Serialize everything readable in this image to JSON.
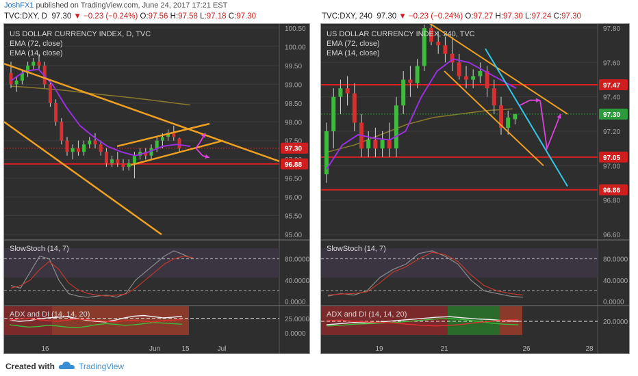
{
  "publish": {
    "author": "JoshFX1",
    "text": "published on TradingView.com, June 24, 2017 17:21 EST"
  },
  "left": {
    "header": {
      "symbol": "TVC:DXY, D",
      "price": "97.30",
      "change": "−0.23 (−0.24%)",
      "o_label": "O:",
      "o": "97.56",
      "h_label": "H:",
      "h": "97.58",
      "l_label": "L:",
      "l": "97.18",
      "c_label": "C:",
      "c": "97.30"
    },
    "legend": [
      "US DOLLAR CURRENCY INDEX, D, TVC",
      "EMA (72, close)",
      "EMA (14, close)"
    ],
    "price_ticks": [
      "100.50",
      "100.00",
      "99.50",
      "99.00",
      "98.50",
      "98.00",
      "97.50",
      "97.00",
      "96.50",
      "96.00",
      "95.50",
      "95.00"
    ],
    "price_min": 95.0,
    "price_max": 100.5,
    "tags": [
      {
        "value": "97.30",
        "color": "#d01e1e"
      },
      {
        "value": "96.88",
        "color": "#d01e1e"
      }
    ],
    "x_ticks": [
      "16",
      "Jun",
      "15",
      "Jul"
    ],
    "stoch": {
      "title": "SlowStoch (14, 7)",
      "ticks": [
        "80.0000",
        "40.0000",
        "0.0000"
      ]
    },
    "adx": {
      "title": "ADX and DI (14, 14, 20)",
      "ticks": [
        "25.0000",
        "0.0000"
      ]
    },
    "chart_data": {
      "type": "candlestick",
      "title": "US DOLLAR CURRENCY INDEX, D, TVC",
      "candles": [
        [
          99.3,
          99.6,
          98.9,
          99.0
        ],
        [
          99.0,
          99.2,
          98.8,
          99.1
        ],
        [
          99.1,
          99.4,
          99.0,
          99.3
        ],
        [
          99.3,
          99.6,
          99.2,
          99.5
        ],
        [
          99.5,
          99.7,
          99.4,
          99.6
        ],
        [
          99.6,
          99.8,
          99.4,
          99.5
        ],
        [
          99.5,
          99.6,
          98.9,
          99.0
        ],
        [
          99.0,
          99.1,
          98.4,
          98.5
        ],
        [
          98.5,
          98.6,
          97.9,
          98.0
        ],
        [
          98.0,
          98.1,
          97.4,
          97.5
        ],
        [
          97.5,
          97.6,
          97.1,
          97.2
        ],
        [
          97.2,
          97.4,
          97.0,
          97.3
        ],
        [
          97.3,
          97.5,
          97.1,
          97.2
        ],
        [
          97.2,
          97.5,
          97.1,
          97.4
        ],
        [
          97.4,
          97.6,
          97.3,
          97.5
        ],
        [
          97.5,
          97.7,
          97.3,
          97.4
        ],
        [
          97.4,
          97.5,
          97.1,
          97.2
        ],
        [
          97.2,
          97.3,
          96.8,
          96.9
        ],
        [
          96.9,
          97.1,
          96.8,
          97.0
        ],
        [
          97.0,
          97.2,
          96.8,
          96.9
        ],
        [
          96.9,
          97.0,
          96.7,
          96.8
        ],
        [
          96.8,
          97.0,
          96.7,
          96.9
        ],
        [
          96.9,
          97.2,
          96.5,
          97.1
        ],
        [
          97.1,
          97.3,
          97.0,
          97.2
        ],
        [
          97.2,
          97.3,
          97.0,
          97.1
        ],
        [
          97.1,
          97.4,
          97.0,
          97.3
        ],
        [
          97.3,
          97.6,
          97.2,
          97.5
        ],
        [
          97.5,
          97.7,
          97.3,
          97.6
        ],
        [
          97.6,
          97.8,
          97.5,
          97.7
        ],
        [
          97.7,
          97.9,
          97.5,
          97.6
        ],
        [
          97.56,
          97.58,
          97.18,
          97.3
        ]
      ],
      "ema72": [
        98.95,
        98.92,
        98.88,
        98.84,
        98.78,
        98.73,
        98.68,
        98.63,
        98.57,
        98.51,
        98.45
      ],
      "ema14": [
        99.1,
        99.35,
        99.4,
        99.0,
        98.4,
        97.9,
        97.6,
        97.35,
        97.2,
        97.1,
        97.2,
        97.35,
        97.4,
        97.35
      ],
      "support": 96.88,
      "last": 97.3
    }
  },
  "right": {
    "header": {
      "symbol": "TVC:DXY, 240",
      "price": "97.30",
      "change": "−0.23 (−0.24%)",
      "o_label": "O:",
      "o": "97.27",
      "h_label": "H:",
      "h": "97.30",
      "l_label": "L:",
      "l": "97.24",
      "c_label": "C:",
      "c": "97.30"
    },
    "legend": [
      "US DOLLAR CURRENCY INDEX, 240, TVC",
      "EMA (72, close)",
      "EMA (14, close)"
    ],
    "price_ticks": [
      "97.80",
      "97.60",
      "97.40",
      "97.20",
      "97.00",
      "96.80",
      "96.60"
    ],
    "price_min": 96.6,
    "price_max": 97.8,
    "tags": [
      {
        "value": "97.47",
        "color": "#d01e1e"
      },
      {
        "value": "97.30",
        "color": "#2a9a3a"
      },
      {
        "value": "97.05",
        "color": "#d01e1e"
      },
      {
        "value": "96.86",
        "color": "#d01e1e"
      }
    ],
    "x_ticks": [
      "19",
      "21",
      "26",
      "28"
    ],
    "stoch": {
      "title": "SlowStoch (14, 7)",
      "ticks": [
        "80.0000",
        "40.0000",
        "0.0000"
      ]
    },
    "adx": {
      "title": "ADX and DI (14, 14, 20)",
      "ticks": [
        "20.0000"
      ]
    },
    "chart_data": {
      "type": "candlestick",
      "title": "US DOLLAR CURRENCY INDEX, 240, TVC",
      "candles": [
        [
          96.95,
          97.25,
          96.9,
          97.2
        ],
        [
          97.2,
          97.45,
          97.1,
          97.4
        ],
        [
          97.4,
          97.5,
          97.3,
          97.45
        ],
        [
          97.45,
          97.52,
          97.35,
          97.42
        ],
        [
          97.42,
          97.48,
          97.2,
          97.25
        ],
        [
          97.25,
          97.3,
          97.05,
          97.1
        ],
        [
          97.1,
          97.2,
          97.05,
          97.15
        ],
        [
          97.15,
          97.22,
          97.05,
          97.1
        ],
        [
          97.1,
          97.2,
          97.05,
          97.15
        ],
        [
          97.15,
          97.25,
          97.05,
          97.1
        ],
        [
          97.1,
          97.4,
          97.05,
          97.35
        ],
        [
          97.35,
          97.55,
          97.3,
          97.5
        ],
        [
          97.5,
          97.58,
          97.4,
          97.48
        ],
        [
          97.48,
          97.62,
          97.45,
          97.58
        ],
        [
          97.58,
          97.82,
          97.55,
          97.8
        ],
        [
          97.8,
          97.85,
          97.7,
          97.72
        ],
        [
          97.72,
          97.78,
          97.65,
          97.7
        ],
        [
          97.7,
          97.75,
          97.6,
          97.65
        ],
        [
          97.65,
          97.75,
          97.55,
          97.6
        ],
        [
          97.6,
          97.65,
          97.5,
          97.52
        ],
        [
          97.52,
          97.58,
          97.45,
          97.5
        ],
        [
          97.5,
          97.56,
          97.45,
          97.52
        ],
        [
          97.52,
          97.6,
          97.48,
          97.55
        ],
        [
          97.55,
          97.58,
          97.4,
          97.45
        ],
        [
          97.45,
          97.5,
          97.3,
          97.35
        ],
        [
          97.35,
          97.4,
          97.18,
          97.22
        ],
        [
          97.22,
          97.32,
          97.18,
          97.28
        ],
        [
          97.27,
          97.3,
          97.24,
          97.3
        ]
      ],
      "ema72": [
        97.08,
        97.12,
        97.18,
        97.24,
        97.28,
        97.3,
        97.32,
        97.33
      ],
      "ema14": [
        96.98,
        97.12,
        97.18,
        97.16,
        97.15,
        97.2,
        97.4,
        97.55,
        97.62,
        97.6,
        97.55,
        97.5,
        97.45
      ],
      "resistance": 97.47,
      "support1": 97.05,
      "support2": 96.86,
      "last": 97.3
    }
  },
  "footer": {
    "created": "Created with",
    "brand": "TradingView"
  }
}
